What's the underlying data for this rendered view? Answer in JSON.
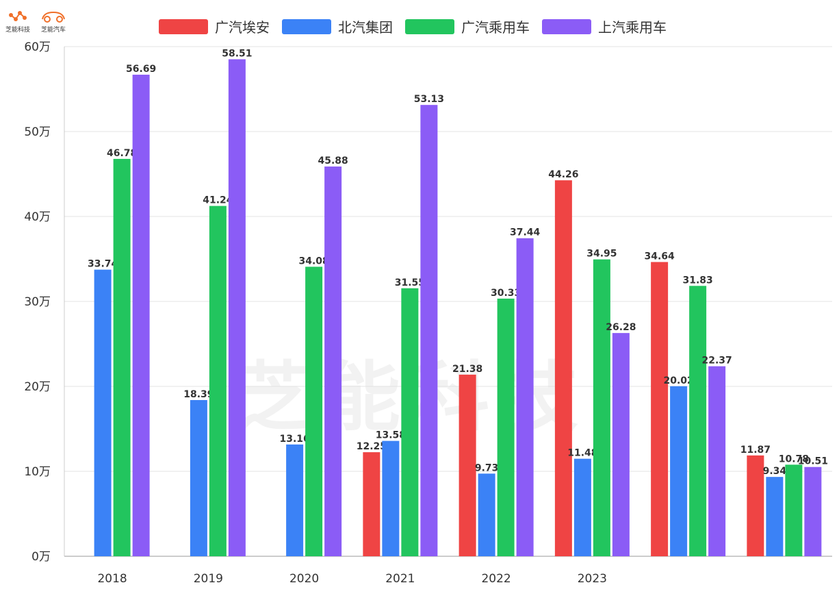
{
  "logos": [
    {
      "icon": "molecule-logo-icon",
      "label": "芝能科技",
      "color": "#f0702a"
    },
    {
      "icon": "car-outline-logo-icon",
      "label": "芝能汽车",
      "color": "#f0702a"
    }
  ],
  "watermark": "芝能科技",
  "chart_data": {
    "type": "bar",
    "categories": [
      "2018",
      "2019",
      "2020",
      "2021",
      "2022",
      "2023",
      "",
      ""
    ],
    "series": [
      {
        "name": "广汽埃安",
        "color": "#ef4444",
        "values": [
          null,
          null,
          null,
          12.25,
          21.38,
          44.26,
          34.64,
          11.87
        ]
      },
      {
        "name": "北汽集团",
        "color": "#3b82f6",
        "values": [
          33.74,
          18.39,
          13.16,
          13.58,
          9.73,
          11.48,
          20.02,
          9.34
        ]
      },
      {
        "name": "广汽乘用车",
        "color": "#22c55e",
        "values": [
          46.78,
          41.24,
          34.08,
          31.55,
          30.33,
          34.95,
          31.83,
          10.78
        ]
      },
      {
        "name": "上汽乘用车",
        "color": "#8b5cf6",
        "values": [
          56.69,
          58.51,
          45.88,
          53.13,
          37.44,
          26.28,
          22.37,
          10.51
        ]
      }
    ],
    "y_ticks": [
      "0万",
      "10万",
      "20万",
      "30万",
      "40万",
      "50万",
      "60万"
    ],
    "ylim": [
      0,
      60
    ],
    "grid": true,
    "legend_position": "top"
  }
}
